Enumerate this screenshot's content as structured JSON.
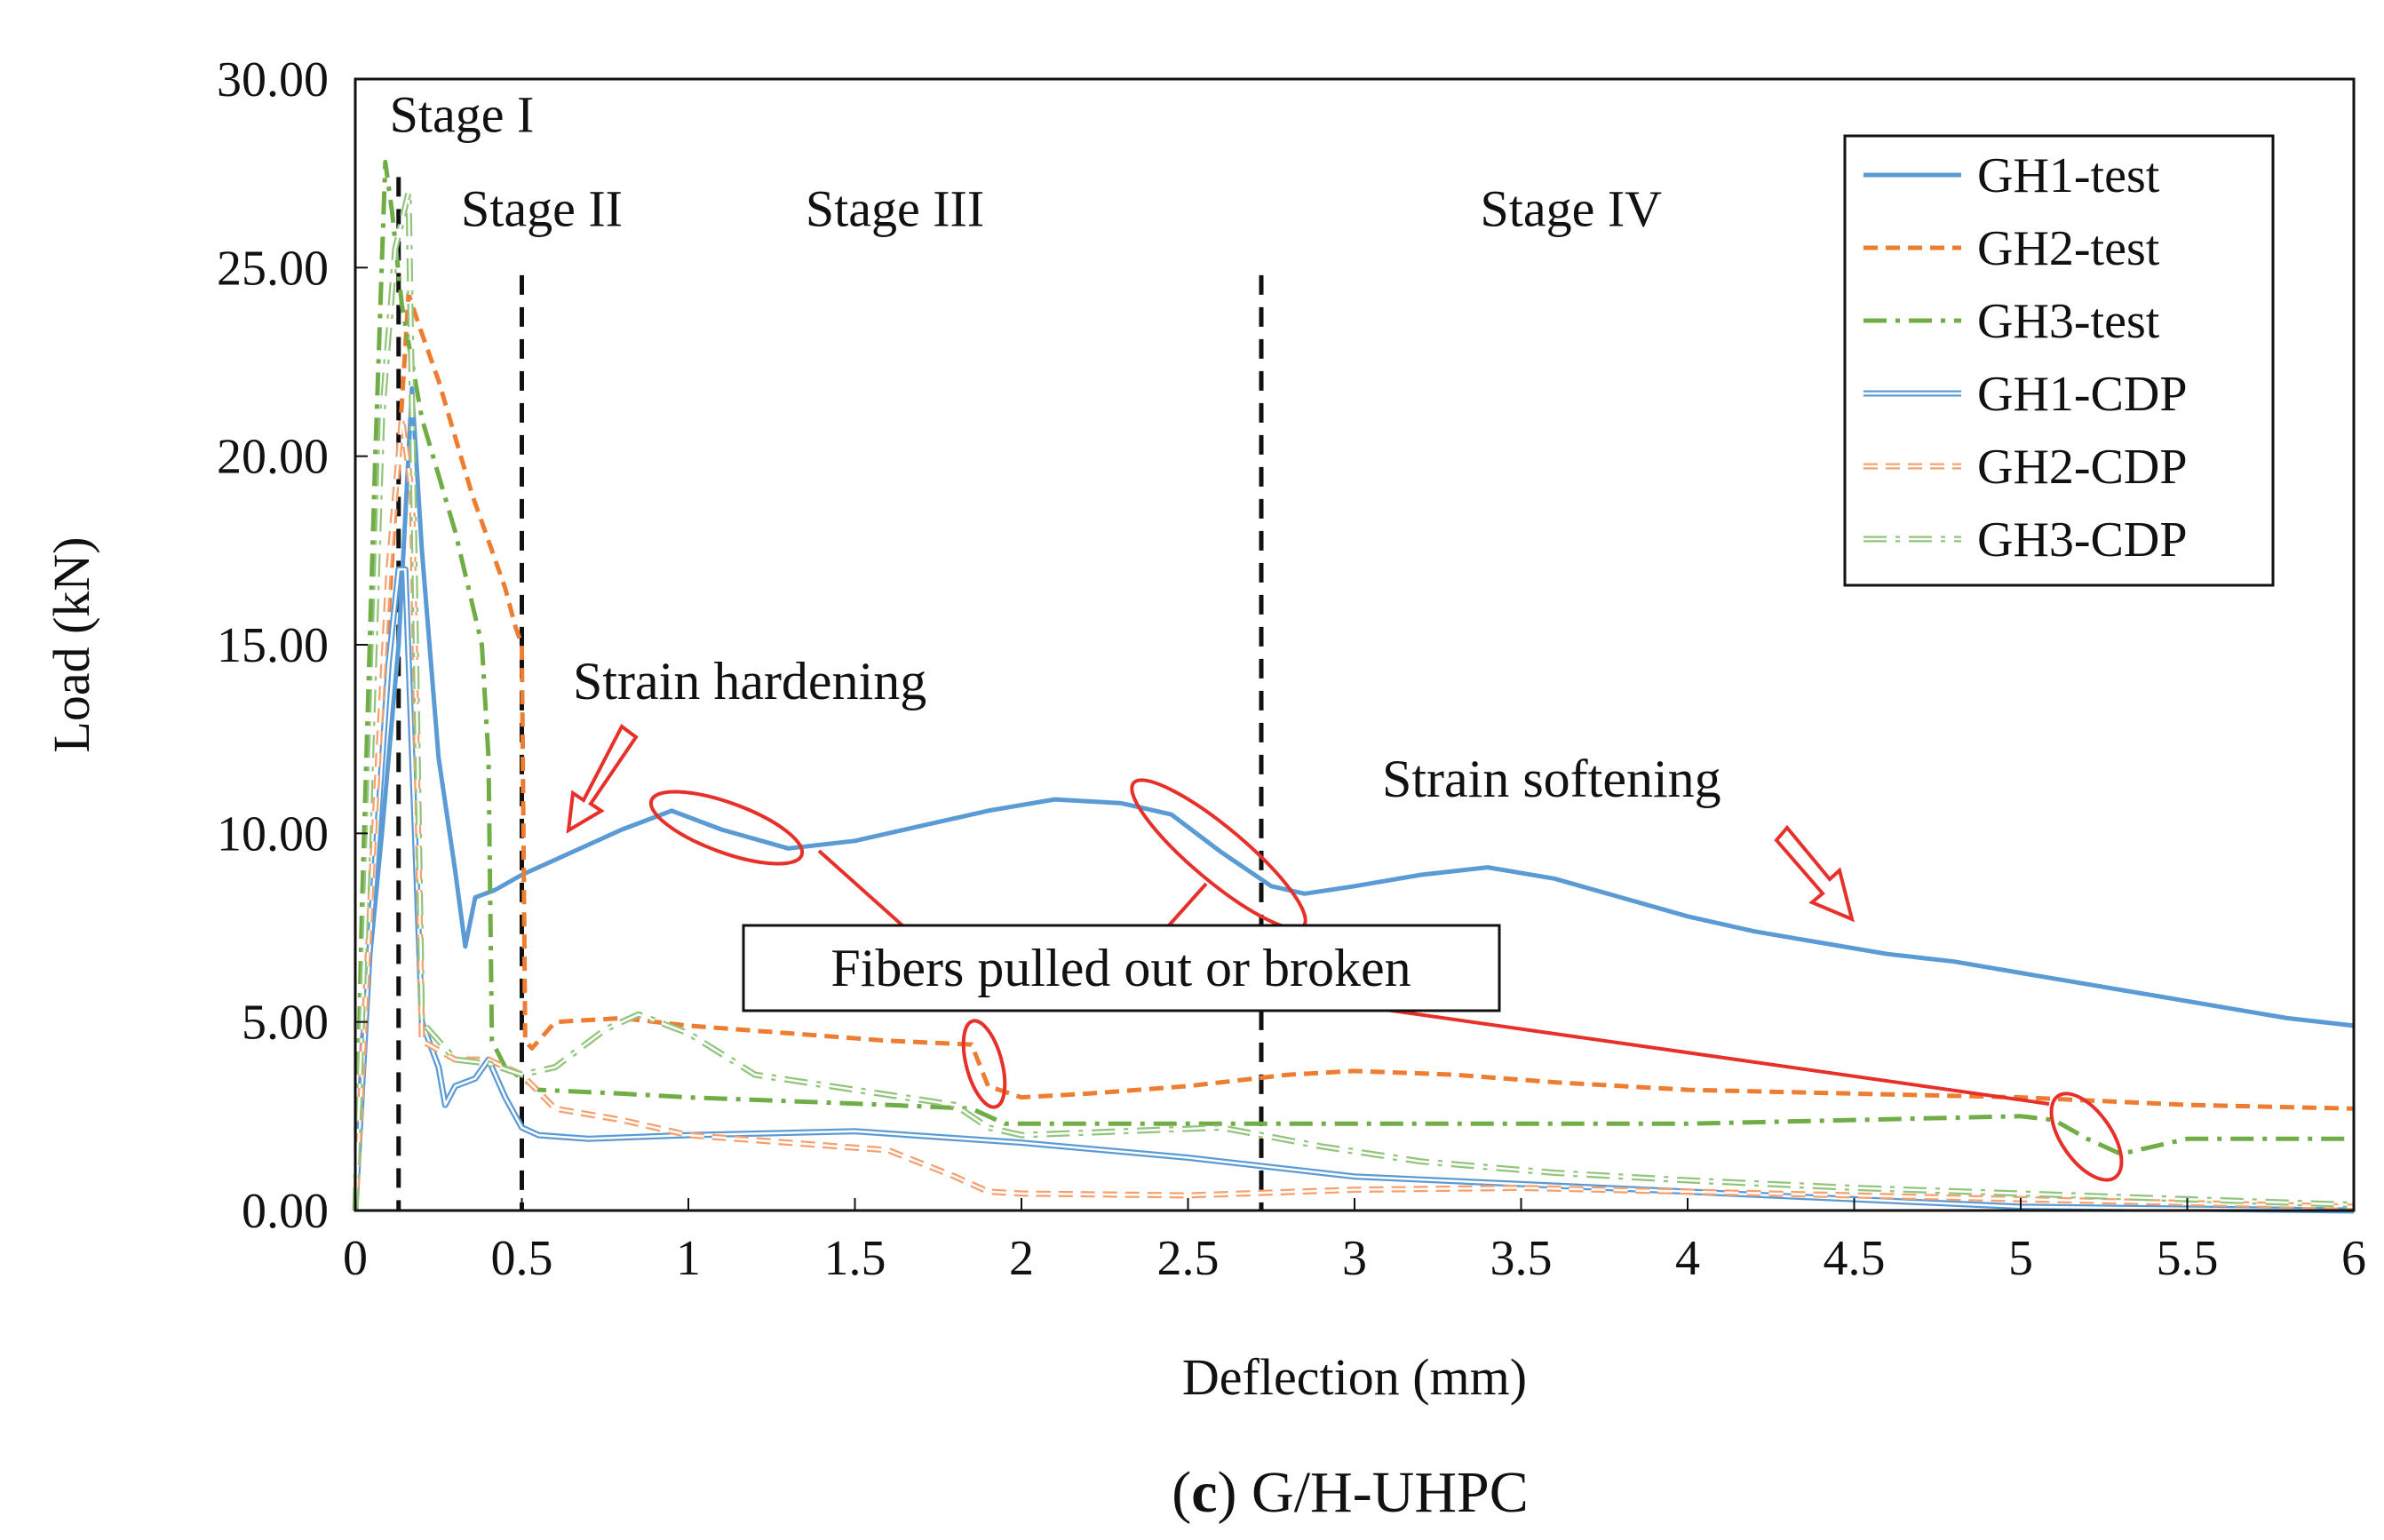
{
  "chart_data": {
    "type": "line",
    "caption_letter": "c",
    "caption_text": "G/H-UHPC",
    "xlabel": "Deflection (mm)",
    "ylabel": "Load (kN)",
    "xlim": [
      0,
      6
    ],
    "ylim": [
      0,
      30
    ],
    "x_ticks": [
      "0",
      "0.5",
      "1",
      "1.5",
      "2",
      "2.5",
      "3",
      "3.5",
      "4",
      "4.5",
      "5",
      "5.5",
      "6"
    ],
    "y_ticks": [
      "0.00",
      "5.00",
      "10.00",
      "15.00",
      "20.00",
      "25.00",
      "30.00"
    ],
    "stage_lines_x": [
      0.13,
      0.5,
      2.72
    ],
    "stages": [
      {
        "label": "Stage I",
        "x": 0.32,
        "y": 28.6
      },
      {
        "label": "Stage II",
        "x": 0.56,
        "y": 26.1
      },
      {
        "label": "Stage III",
        "x": 1.62,
        "y": 26.1
      },
      {
        "label": "Stage IV",
        "x": 3.65,
        "y": 26.1
      }
    ],
    "annotations": {
      "strain_hardening": "Strain hardening",
      "strain_softening": "Strain softening",
      "fibers": "Fibers pulled out or broken"
    },
    "legend": [
      "GH1-test",
      "GH2-test",
      "GH3-test",
      "GH1-CDP",
      "GH2-CDP",
      "GH3-CDP"
    ],
    "series": [
      {
        "name": "GH1-test",
        "color": "#5b9bd5",
        "style": "solid",
        "x": [
          0,
          0.02,
          0.08,
          0.13,
          0.17,
          0.2,
          0.25,
          0.3,
          0.33,
          0.36,
          0.42,
          0.5,
          0.6,
          0.7,
          0.8,
          0.95,
          1.1,
          1.3,
          1.5,
          1.7,
          1.9,
          2.1,
          2.3,
          2.45,
          2.6,
          2.75,
          2.85,
          3.0,
          3.2,
          3.4,
          3.6,
          3.8,
          4.0,
          4.2,
          4.4,
          4.6,
          4.8,
          5.0,
          5.2,
          5.4,
          5.6,
          5.8,
          6.0
        ],
        "y": [
          0,
          4.5,
          10.0,
          15.0,
          21.8,
          17.5,
          12.0,
          9.0,
          7.0,
          8.3,
          8.5,
          8.9,
          9.3,
          9.7,
          10.1,
          10.6,
          10.1,
          9.6,
          9.8,
          10.2,
          10.6,
          10.9,
          10.8,
          10.5,
          9.5,
          8.6,
          8.4,
          8.6,
          8.9,
          9.1,
          8.8,
          8.3,
          7.8,
          7.4,
          7.1,
          6.8,
          6.6,
          6.3,
          6.0,
          5.7,
          5.4,
          5.1,
          4.9
        ]
      },
      {
        "name": "GH2-test",
        "color": "#ed7d31",
        "style": "dash",
        "x": [
          0,
          0.03,
          0.08,
          0.13,
          0.16,
          0.19,
          0.25,
          0.35,
          0.45,
          0.48,
          0.5,
          0.51,
          0.53,
          0.6,
          0.8,
          1.0,
          1.3,
          1.6,
          1.85,
          1.9,
          2.0,
          2.2,
          2.5,
          2.8,
          3.0,
          3.3,
          3.6,
          4.0,
          4.5,
          5.0,
          5.5,
          6.0
        ],
        "y": [
          0,
          6.0,
          13.0,
          20.0,
          24.3,
          23.5,
          22.0,
          19.0,
          16.5,
          15.5,
          15.0,
          4.5,
          4.3,
          5.0,
          5.1,
          4.9,
          4.7,
          4.5,
          4.4,
          3.3,
          3.0,
          3.1,
          3.3,
          3.6,
          3.7,
          3.6,
          3.4,
          3.2,
          3.1,
          3.0,
          2.8,
          2.7
        ]
      },
      {
        "name": "GH3-test",
        "color": "#70ad47",
        "style": "dashdot",
        "x": [
          0,
          0.02,
          0.06,
          0.09,
          0.11,
          0.14,
          0.2,
          0.3,
          0.38,
          0.4,
          0.41,
          0.45,
          0.55,
          0.8,
          1.0,
          1.3,
          1.6,
          1.85,
          1.95,
          2.2,
          2.6,
          3.0,
          3.5,
          4.0,
          4.5,
          5.0,
          5.1,
          5.2,
          5.3,
          5.5,
          6.0
        ],
        "y": [
          0,
          8.0,
          20.0,
          27.8,
          26.5,
          24.0,
          21.0,
          18.0,
          15.0,
          12.0,
          4.5,
          3.8,
          3.2,
          3.1,
          3.0,
          2.9,
          2.8,
          2.7,
          2.3,
          2.3,
          2.3,
          2.3,
          2.3,
          2.3,
          2.4,
          2.5,
          2.4,
          1.9,
          1.5,
          1.9,
          1.9
        ]
      },
      {
        "name": "GH1-CDP",
        "color": "#5b9bd5",
        "style": "double",
        "x": [
          0,
          0.05,
          0.1,
          0.13,
          0.15,
          0.2,
          0.25,
          0.27,
          0.3,
          0.36,
          0.4,
          0.45,
          0.5,
          0.55,
          0.7,
          1.0,
          1.5,
          2.0,
          2.5,
          3.0,
          3.5,
          4.0,
          4.5,
          5.0,
          5.5,
          6.0
        ],
        "y": [
          0,
          8.0,
          14.5,
          17.0,
          17.0,
          5.0,
          3.8,
          2.8,
          3.3,
          3.5,
          4.0,
          3.0,
          2.2,
          2.0,
          1.9,
          2.0,
          2.1,
          1.8,
          1.4,
          0.9,
          0.7,
          0.5,
          0.3,
          0.1,
          0.05,
          0.0
        ]
      },
      {
        "name": "GH2-CDP",
        "color": "#f4a06f",
        "style": "double-dash",
        "x": [
          0,
          0.05,
          0.1,
          0.14,
          0.17,
          0.2,
          0.3,
          0.4,
          0.5,
          0.6,
          0.8,
          1.0,
          1.3,
          1.6,
          1.8,
          1.9,
          2.0,
          2.5,
          3.0,
          3.5,
          4.0,
          4.5,
          5.0,
          5.5,
          6.0
        ],
        "y": [
          0,
          9.0,
          17.0,
          21.0,
          19.0,
          4.5,
          4.0,
          4.0,
          3.6,
          2.7,
          2.4,
          2.0,
          1.8,
          1.6,
          0.9,
          0.5,
          0.45,
          0.4,
          0.55,
          0.6,
          0.5,
          0.4,
          0.3,
          0.2,
          0.1
        ]
      },
      {
        "name": "GH3-CDP",
        "color": "#92c47d",
        "style": "double-dashdot",
        "x": [
          0,
          0.04,
          0.08,
          0.12,
          0.16,
          0.2,
          0.3,
          0.4,
          0.5,
          0.6,
          0.75,
          0.85,
          1.0,
          1.2,
          1.5,
          1.8,
          1.9,
          2.0,
          2.3,
          2.6,
          2.9,
          3.2,
          3.6,
          4.0,
          4.5,
          5.0,
          5.5,
          6.0
        ],
        "y": [
          0,
          10.0,
          21.0,
          25.5,
          27.0,
          5.0,
          4.0,
          3.9,
          3.6,
          3.8,
          4.8,
          5.2,
          4.7,
          3.6,
          3.2,
          2.8,
          2.2,
          2.0,
          2.1,
          2.2,
          1.7,
          1.3,
          1.0,
          0.8,
          0.6,
          0.45,
          0.3,
          0.15
        ]
      }
    ]
  }
}
